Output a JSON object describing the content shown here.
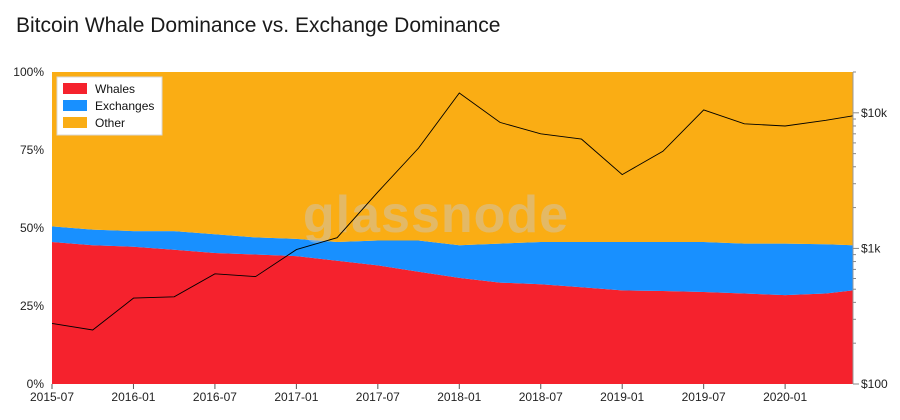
{
  "header": {
    "title": "Bitcoin Whale Dominance vs. Exchange Dominance"
  },
  "watermark": "glassnode",
  "chart_data": {
    "type": "area",
    "stacked": true,
    "title": "Bitcoin Whale Dominance vs. Exchange Dominance",
    "x_start": "2015-07",
    "x_end": "2020-06",
    "x_ticks": [
      "2015-07",
      "2016-01",
      "2016-07",
      "2017-01",
      "2017-07",
      "2018-01",
      "2018-07",
      "2019-01",
      "2019-07",
      "2020-01"
    ],
    "y_left": {
      "ticks": [
        "0%",
        "25%",
        "50%",
        "75%",
        "100%"
      ],
      "range": [
        0,
        100
      ]
    },
    "y_right": {
      "scale": "log",
      "ticks": [
        "$100",
        "$1k",
        "$10k"
      ],
      "range": [
        100,
        20000
      ]
    },
    "legend": {
      "placement": "top-left",
      "entries": [
        "Whales",
        "Exchanges",
        "Other"
      ]
    },
    "grid": false,
    "colors": {
      "Whales": "#f5222d",
      "Exchanges": "#1890ff",
      "Other": "#faad14",
      "price": "#000000"
    },
    "x": [
      "2015-07",
      "2015-10",
      "2016-01",
      "2016-04",
      "2016-07",
      "2016-10",
      "2017-01",
      "2017-04",
      "2017-07",
      "2017-10",
      "2018-01",
      "2018-04",
      "2018-07",
      "2018-10",
      "2019-01",
      "2019-04",
      "2019-07",
      "2019-10",
      "2020-01",
      "2020-04",
      "2020-06"
    ],
    "series": [
      {
        "name": "Whales",
        "unit": "%",
        "values": [
          45.5,
          44.5,
          44,
          43,
          42,
          41.5,
          41,
          39.5,
          38,
          36,
          34,
          32.5,
          32,
          31,
          30,
          29.8,
          29.5,
          29,
          28.5,
          29,
          30
        ]
      },
      {
        "name": "Exchanges",
        "unit": "%",
        "values": [
          5,
          5,
          5,
          6,
          6,
          5.5,
          5.5,
          6,
          8,
          10,
          10.5,
          12.5,
          13.5,
          14.5,
          15.5,
          15.7,
          16,
          16,
          16.5,
          15.8,
          14.5
        ]
      },
      {
        "name": "Other",
        "unit": "%",
        "values": [
          49.5,
          50.5,
          51,
          51,
          52,
          53,
          53.5,
          54.5,
          54,
          54,
          55.5,
          55,
          54.5,
          54.5,
          54.5,
          54.5,
          54.5,
          55,
          55,
          55.2,
          55.5
        ]
      },
      {
        "name": "Price",
        "axis": "right",
        "unit": "USD",
        "values": [
          280,
          250,
          430,
          440,
          650,
          620,
          980,
          1200,
          2600,
          5500,
          14000,
          8500,
          7000,
          6400,
          3500,
          5200,
          10500,
          8300,
          8000,
          8800,
          9500
        ]
      }
    ]
  }
}
